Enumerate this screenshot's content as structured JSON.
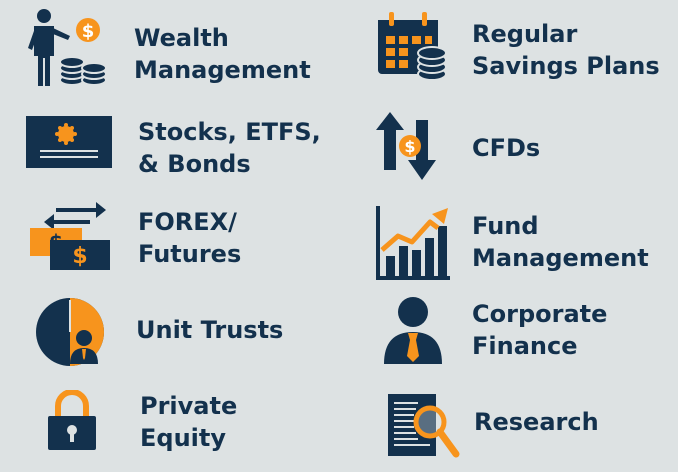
{
  "colors": {
    "navy": "#13314d",
    "orange": "#f7941d",
    "background": "#dde2e3"
  },
  "items": [
    {
      "icon": "wealth-management-icon",
      "lines": [
        "Wealth",
        "Management"
      ]
    },
    {
      "icon": "regular-savings-calendar-icon",
      "lines": [
        "Regular",
        "Savings Plans"
      ]
    },
    {
      "icon": "stock-certificate-icon",
      "lines": [
        "Stocks, ETFS,",
        "& Bonds"
      ]
    },
    {
      "icon": "cfd-arrows-icon",
      "lines": [
        "CFDs"
      ]
    },
    {
      "icon": "forex-exchange-icon",
      "lines": [
        "FOREX/",
        "Futures"
      ]
    },
    {
      "icon": "fund-growth-chart-icon",
      "lines": [
        "Fund",
        "Management"
      ]
    },
    {
      "icon": "unit-trusts-pie-icon",
      "lines": [
        "Unit Trusts"
      ]
    },
    {
      "icon": "corporate-person-icon",
      "lines": [
        "Corporate",
        "Finance"
      ]
    },
    {
      "icon": "padlock-icon",
      "lines": [
        "Private",
        "Equity"
      ]
    },
    {
      "icon": "research-magnifier-icon",
      "lines": [
        "Research"
      ]
    }
  ]
}
